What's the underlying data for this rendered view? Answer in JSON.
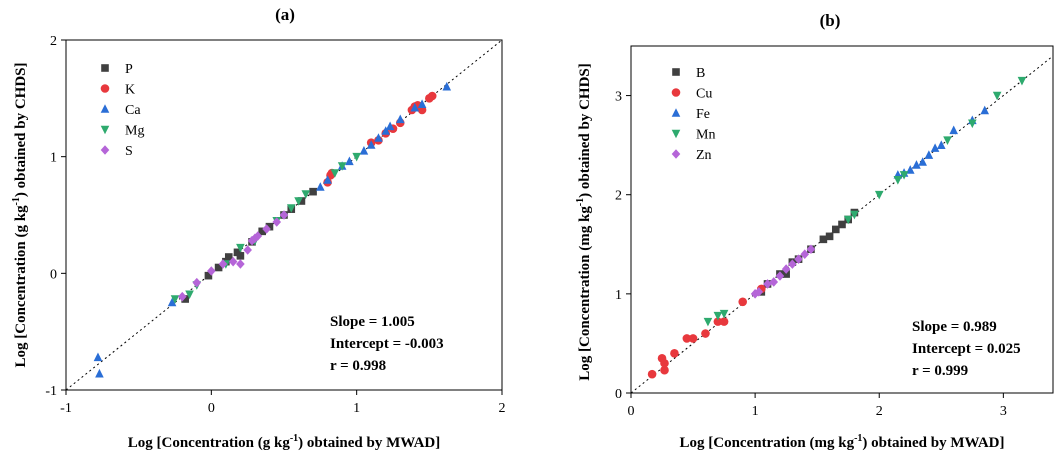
{
  "chart_data": [
    {
      "type": "scatter",
      "panel_label": "(a)",
      "xlabel": "Log [Concentration (g kg-1) obtained by MWAD]",
      "ylabel": "Log [Concentration (g kg-1) obtained by CHDS]",
      "unit": "g kg",
      "xlim": [
        -1,
        2
      ],
      "ylim": [
        -1,
        2
      ],
      "xticks": [
        -1,
        0,
        1,
        2
      ],
      "yticks": [
        -1,
        0,
        1,
        2
      ],
      "legend_position": "top-left",
      "reference_line": "y = x (dotted)",
      "stats": [
        "Slope = 1.005",
        "Intercept = -0.003",
        "r = 0.998"
      ],
      "series": [
        {
          "name": "P",
          "marker": "square",
          "color": "#404040",
          "points": [
            [
              -0.18,
              -0.22
            ],
            [
              -0.02,
              -0.02
            ],
            [
              0.05,
              0.05
            ],
            [
              0.1,
              0.1
            ],
            [
              0.12,
              0.14
            ],
            [
              0.18,
              0.18
            ],
            [
              0.2,
              0.15
            ],
            [
              0.28,
              0.27
            ],
            [
              0.35,
              0.36
            ],
            [
              0.4,
              0.4
            ],
            [
              0.5,
              0.5
            ],
            [
              0.55,
              0.55
            ],
            [
              0.62,
              0.62
            ],
            [
              0.7,
              0.7
            ]
          ]
        },
        {
          "name": "K",
          "marker": "circle",
          "color": "#e8383d",
          "points": [
            [
              0.8,
              0.78
            ],
            [
              0.82,
              0.84
            ],
            [
              0.83,
              0.86
            ],
            [
              1.1,
              1.12
            ],
            [
              1.15,
              1.14
            ],
            [
              1.2,
              1.2
            ],
            [
              1.25,
              1.24
            ],
            [
              1.3,
              1.29
            ],
            [
              1.38,
              1.4
            ],
            [
              1.4,
              1.43
            ],
            [
              1.42,
              1.44
            ],
            [
              1.45,
              1.4
            ],
            [
              1.5,
              1.5
            ],
            [
              1.52,
              1.52
            ]
          ]
        },
        {
          "name": "Ca",
          "marker": "triangle-up",
          "color": "#2a6ed6",
          "points": [
            [
              -0.78,
              -0.72
            ],
            [
              -0.77,
              -0.86
            ],
            [
              -0.27,
              -0.25
            ],
            [
              0.75,
              0.74
            ],
            [
              0.8,
              0.8
            ],
            [
              0.9,
              0.92
            ],
            [
              0.95,
              0.96
            ],
            [
              1.05,
              1.05
            ],
            [
              1.1,
              1.1
            ],
            [
              1.15,
              1.16
            ],
            [
              1.2,
              1.22
            ],
            [
              1.23,
              1.26
            ],
            [
              1.3,
              1.32
            ],
            [
              1.4,
              1.42
            ],
            [
              1.45,
              1.45
            ],
            [
              1.62,
              1.6
            ]
          ]
        },
        {
          "name": "Mg",
          "marker": "triangle-down",
          "color": "#2eaa6e",
          "points": [
            [
              -0.25,
              -0.22
            ],
            [
              -0.15,
              -0.18
            ],
            [
              -0.1,
              -0.1
            ],
            [
              0.1,
              0.08
            ],
            [
              0.2,
              0.22
            ],
            [
              0.3,
              0.28
            ],
            [
              0.45,
              0.45
            ],
            [
              0.55,
              0.56
            ],
            [
              0.6,
              0.62
            ],
            [
              0.65,
              0.68
            ],
            [
              0.85,
              0.86
            ],
            [
              0.9,
              0.92
            ],
            [
              1.0,
              1.0
            ]
          ]
        },
        {
          "name": "S",
          "marker": "diamond",
          "color": "#b565d8",
          "points": [
            [
              -0.2,
              -0.2
            ],
            [
              -0.1,
              -0.08
            ],
            [
              0.0,
              0.02
            ],
            [
              0.08,
              0.08
            ],
            [
              0.15,
              0.1
            ],
            [
              0.2,
              0.08
            ],
            [
              0.25,
              0.2
            ],
            [
              0.28,
              0.28
            ],
            [
              0.3,
              0.3
            ],
            [
              0.32,
              0.32
            ],
            [
              0.38,
              0.38
            ],
            [
              0.45,
              0.44
            ],
            [
              0.5,
              0.5
            ]
          ]
        }
      ]
    },
    {
      "type": "scatter",
      "panel_label": "(b)",
      "xlabel": "Log [Concentration (mg kg-1) obtained by MWAD]",
      "ylabel": "Log [Concentration (mg kg-1) obtained by CHDS]",
      "unit": "mg kg",
      "xlim": [
        0,
        3.4
      ],
      "ylim": [
        0,
        3.5
      ],
      "xticks": [
        0,
        1,
        2,
        3
      ],
      "yticks": [
        0,
        1,
        2,
        3
      ],
      "legend_position": "top-left",
      "reference_line": "y = x (dotted)",
      "stats": [
        "Slope = 0.989",
        "Intercept = 0.025",
        "r = 0.999"
      ],
      "series": [
        {
          "name": "B",
          "marker": "square",
          "color": "#404040",
          "points": [
            [
              1.05,
              1.02
            ],
            [
              1.1,
              1.1
            ],
            [
              1.2,
              1.2
            ],
            [
              1.25,
              1.2
            ],
            [
              1.3,
              1.32
            ],
            [
              1.35,
              1.35
            ],
            [
              1.45,
              1.45
            ],
            [
              1.55,
              1.55
            ],
            [
              1.6,
              1.58
            ],
            [
              1.65,
              1.65
            ],
            [
              1.7,
              1.7
            ],
            [
              1.75,
              1.75
            ],
            [
              1.8,
              1.82
            ]
          ]
        },
        {
          "name": "Cu",
          "marker": "circle",
          "color": "#e8383d",
          "points": [
            [
              0.17,
              0.19
            ],
            [
              0.25,
              0.35
            ],
            [
              0.27,
              0.23
            ],
            [
              0.27,
              0.3
            ],
            [
              0.35,
              0.4
            ],
            [
              0.45,
              0.55
            ],
            [
              0.5,
              0.55
            ],
            [
              0.6,
              0.6
            ],
            [
              0.7,
              0.72
            ],
            [
              0.75,
              0.72
            ],
            [
              0.9,
              0.92
            ],
            [
              1.05,
              1.05
            ]
          ]
        },
        {
          "name": "Fe",
          "marker": "triangle-up",
          "color": "#2a6ed6",
          "points": [
            [
              2.15,
              2.2
            ],
            [
              2.2,
              2.22
            ],
            [
              2.25,
              2.25
            ],
            [
              2.3,
              2.3
            ],
            [
              2.35,
              2.33
            ],
            [
              2.4,
              2.4
            ],
            [
              2.45,
              2.47
            ],
            [
              2.5,
              2.5
            ],
            [
              2.6,
              2.65
            ],
            [
              2.75,
              2.75
            ],
            [
              2.85,
              2.85
            ]
          ]
        },
        {
          "name": "Mn",
          "marker": "triangle-down",
          "color": "#2eaa6e",
          "points": [
            [
              0.62,
              0.72
            ],
            [
              0.7,
              0.78
            ],
            [
              0.75,
              0.8
            ],
            [
              1.75,
              1.75
            ],
            [
              1.8,
              1.8
            ],
            [
              2.0,
              2.0
            ],
            [
              2.15,
              2.15
            ],
            [
              2.2,
              2.2
            ],
            [
              2.55,
              2.55
            ],
            [
              2.75,
              2.72
            ],
            [
              2.95,
              3.0
            ],
            [
              3.15,
              3.15
            ]
          ]
        },
        {
          "name": "Zn",
          "marker": "diamond",
          "color": "#b565d8",
          "points": [
            [
              1.0,
              1.0
            ],
            [
              1.03,
              1.02
            ],
            [
              1.1,
              1.1
            ],
            [
              1.15,
              1.12
            ],
            [
              1.2,
              1.18
            ],
            [
              1.25,
              1.25
            ],
            [
              1.3,
              1.3
            ],
            [
              1.35,
              1.35
            ],
            [
              1.4,
              1.4
            ],
            [
              1.45,
              1.45
            ]
          ]
        }
      ]
    }
  ]
}
